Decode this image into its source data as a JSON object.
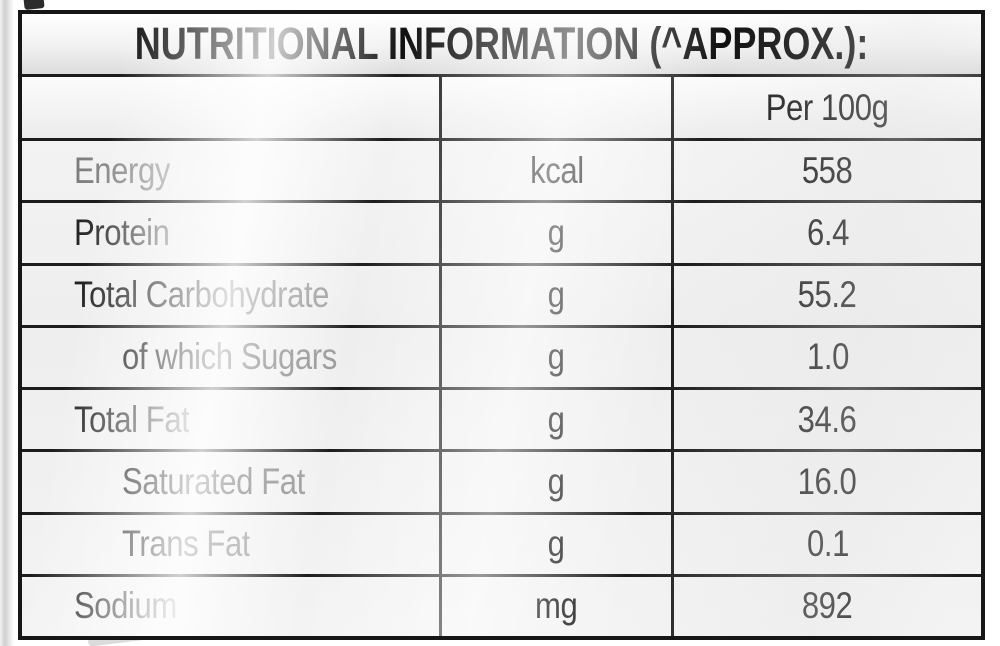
{
  "title": "NUTRITIONAL INFORMATION (^APPROX.):",
  "table": {
    "value_column_header": "Per 100g",
    "rows": [
      {
        "label": "Energy",
        "unit": "kcal",
        "value": "558"
      },
      {
        "label": "Protein",
        "unit": "g",
        "value": "6.4"
      },
      {
        "label": "Total Carbohydrate",
        "unit": "g",
        "value": "55.2"
      },
      {
        "label": "of which Sugars",
        "unit": "g",
        "value": "1.0"
      },
      {
        "label": "Total Fat",
        "unit": "g",
        "value": "34.6"
      },
      {
        "label": "Saturated Fat",
        "unit": "g",
        "value": "16.0"
      },
      {
        "label": "Trans Fat",
        "unit": "g",
        "value": "0.1"
      },
      {
        "label": "Sodium",
        "unit": "mg",
        "value": "892"
      }
    ]
  },
  "colors": {
    "border": "#161616",
    "text": "#1b1b1b",
    "faded_label": "#8f8f8f",
    "background": "#ffffff"
  }
}
